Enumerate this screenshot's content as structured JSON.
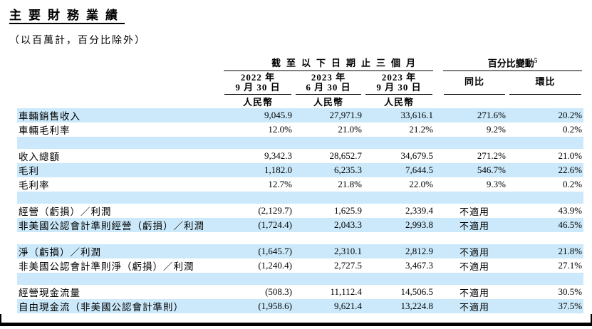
{
  "page": {
    "title": "主要財務業績",
    "subtitle": "（以百萬計，百分比除外）"
  },
  "colors": {
    "row_highlight": "#cbe9fa",
    "rule": "#000000",
    "bottom_bar": "#000000",
    "page_bg": "#ffffff"
  },
  "table": {
    "group_headers": {
      "period": "截至以下日期止三個月",
      "pct_change": "百分比變動",
      "pct_change_footnote": "5"
    },
    "period_columns": [
      {
        "line1": "2022 年",
        "line2": "9 月 30 日",
        "currency": "人民幣"
      },
      {
        "line1": "2023 年",
        "line2": "6 月 30 日",
        "currency": "人民幣"
      },
      {
        "line1": "2023 年",
        "line2": "9 月 30 日",
        "currency": "人民幣"
      }
    ],
    "change_columns": [
      {
        "label": "同比"
      },
      {
        "label": "環比"
      }
    ],
    "rows": [
      {
        "label": "車輛銷售收入",
        "values": [
          "9,045.9",
          "27,971.9",
          "33,616.1",
          "271.6%",
          "20.2%"
        ],
        "shaded": true
      },
      {
        "label": "車輛毛利率",
        "values": [
          "12.0%",
          "21.0%",
          "21.2%",
          "9.2%",
          "0.2%"
        ],
        "shaded": false
      },
      {
        "spacer": true,
        "shaded": true
      },
      {
        "label": "收入總額",
        "values": [
          "9,342.3",
          "28,652.7",
          "34,679.5",
          "271.2%",
          "21.0%"
        ],
        "shaded": false
      },
      {
        "label": "毛利",
        "values": [
          "1,182.0",
          "6,235.3",
          "7,644.5",
          "546.7%",
          "22.6%"
        ],
        "shaded": true
      },
      {
        "label": "毛利率",
        "values": [
          "12.7%",
          "21.8%",
          "22.0%",
          "9.3%",
          "0.2%"
        ],
        "shaded": false
      },
      {
        "spacer": true,
        "shaded": true
      },
      {
        "label": "經營（虧損）／利潤",
        "values": [
          "(2,129.7)",
          "1,625.9",
          "2,339.4",
          "不適用",
          "43.9%"
        ],
        "shaded": false
      },
      {
        "label": "非美國公認會計準則經營（虧損）／利潤",
        "values": [
          "(1,724.4)",
          "2,043.3",
          "2,993.8",
          "不適用",
          "46.5%"
        ],
        "shaded": true
      },
      {
        "spacer": true,
        "shaded": false
      },
      {
        "label": "淨（虧損）／利潤",
        "values": [
          "(1,645.7)",
          "2,310.1",
          "2,812.9",
          "不適用",
          "21.8%"
        ],
        "shaded": true
      },
      {
        "label": "非美國公認會計準則淨（虧損）／利潤",
        "values": [
          "(1,240.4)",
          "2,727.5",
          "3,467.3",
          "不適用",
          "27.1%"
        ],
        "shaded": false
      },
      {
        "spacer": true,
        "shaded": true
      },
      {
        "label": "經營現金流量",
        "values": [
          "(508.3)",
          "11,112.4",
          "14,506.5",
          "不適用",
          "30.5%"
        ],
        "shaded": false
      },
      {
        "label": "自由現金流（非美國公認會計準則）",
        "values": [
          "(1,958.6)",
          "9,621.4",
          "13,224.8",
          "不適用",
          "37.5%"
        ],
        "shaded": true
      }
    ],
    "not_applicable_text": "不適用"
  }
}
